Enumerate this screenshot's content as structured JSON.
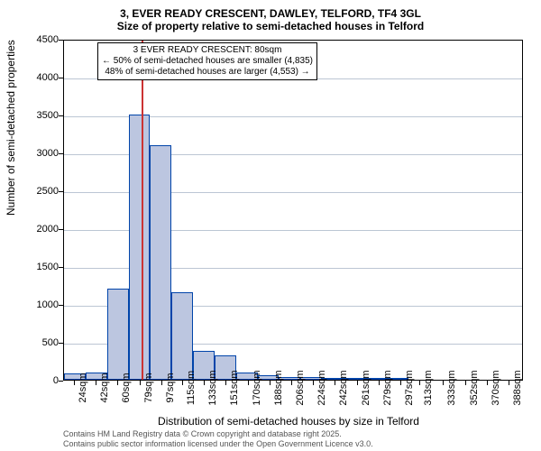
{
  "chart": {
    "title_main": "3, EVER READY CRESCENT, DAWLEY, TELFORD, TF4 3GL",
    "title_sub": "Size of property relative to semi-detached houses in Telford",
    "y_axis_label": "Number of semi-detached properties",
    "x_axis_label": "Distribution of semi-detached houses by size in Telford",
    "y_min": 0,
    "y_max": 4500,
    "y_ticks": [
      0,
      500,
      1000,
      1500,
      2000,
      2500,
      3000,
      3500,
      4000,
      4500
    ],
    "x_min": 15,
    "x_max": 400,
    "x_tick_step": 18,
    "x_tick_start": 24,
    "x_ticks": [
      24,
      42,
      60,
      79,
      97,
      115,
      133,
      151,
      170,
      188,
      206,
      224,
      242,
      261,
      279,
      297,
      313,
      333,
      352,
      370,
      388
    ],
    "bar_width_data": 18,
    "bars": [
      {
        "x": 15,
        "value": 85
      },
      {
        "x": 33,
        "value": 100
      },
      {
        "x": 51,
        "value": 1200
      },
      {
        "x": 69,
        "value": 3500
      },
      {
        "x": 87,
        "value": 3100
      },
      {
        "x": 105,
        "value": 1150
      },
      {
        "x": 123,
        "value": 380
      },
      {
        "x": 141,
        "value": 320
      },
      {
        "x": 159,
        "value": 100
      },
      {
        "x": 177,
        "value": 60
      },
      {
        "x": 195,
        "value": 40
      },
      {
        "x": 213,
        "value": 30
      },
      {
        "x": 231,
        "value": 5
      },
      {
        "x": 249,
        "value": 10
      },
      {
        "x": 267,
        "value": 5
      },
      {
        "x": 285,
        "value": 5
      }
    ],
    "marker_x": 80,
    "annotation": {
      "line1": "3 EVER READY CRESCENT: 80sqm",
      "line2": "← 50% of semi-detached houses are smaller (4,835)",
      "line3": "48% of semi-detached houses are larger (4,553) →"
    },
    "colors": {
      "bar_fill": "#bcc6e0",
      "bar_stroke": "#0044aa",
      "grid": "#bcc6d4",
      "marker": "#cc3333",
      "background": "#ffffff"
    },
    "footer_line1": "Contains HM Land Registry data © Crown copyright and database right 2025.",
    "footer_line2": "Contains public sector information licensed under the Open Government Licence v3.0."
  }
}
